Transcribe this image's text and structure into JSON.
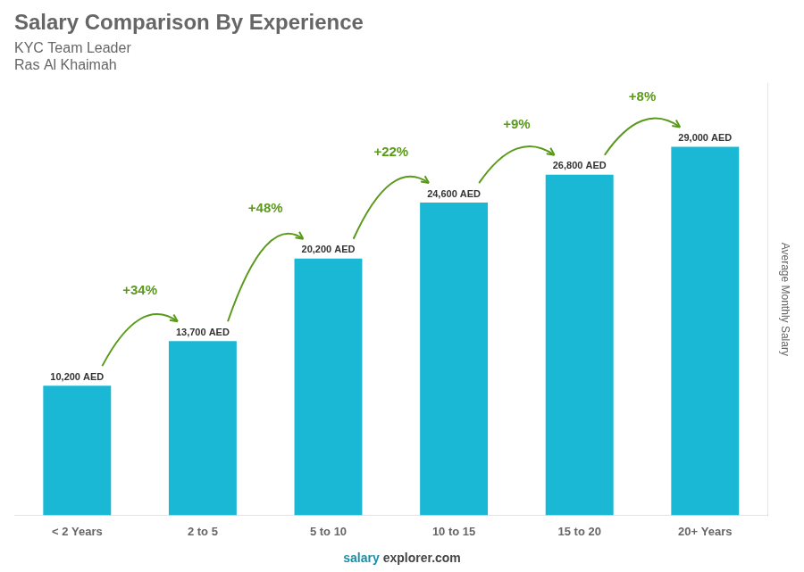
{
  "chart_data": {
    "type": "bar",
    "title": "Salary Comparison By Experience",
    "subtitle": [
      "KYC Team Leader",
      "Ras Al Khaimah"
    ],
    "ylabel": "Average Monthly Salary",
    "footer": [
      "salary",
      "explorer.com"
    ],
    "categories": [
      "< 2 Years",
      "2 to 5",
      "5 to 10",
      "10 to 15",
      "15 to 20",
      "20+ Years"
    ],
    "values": [
      10200,
      13700,
      20200,
      24600,
      26800,
      29000
    ],
    "value_labels": [
      "10,200 AED",
      "13,700 AED",
      "20,200 AED",
      "24,600 AED",
      "26,800 AED",
      "29,000 AED"
    ],
    "data_labels": true,
    "annotations": [
      "+34%",
      "+48%",
      "+22%",
      "+9%",
      "+8%"
    ],
    "color": "#1ab8d4",
    "ylim": [
      0,
      34000
    ],
    "grid": false,
    "tick_labels": "x"
  }
}
